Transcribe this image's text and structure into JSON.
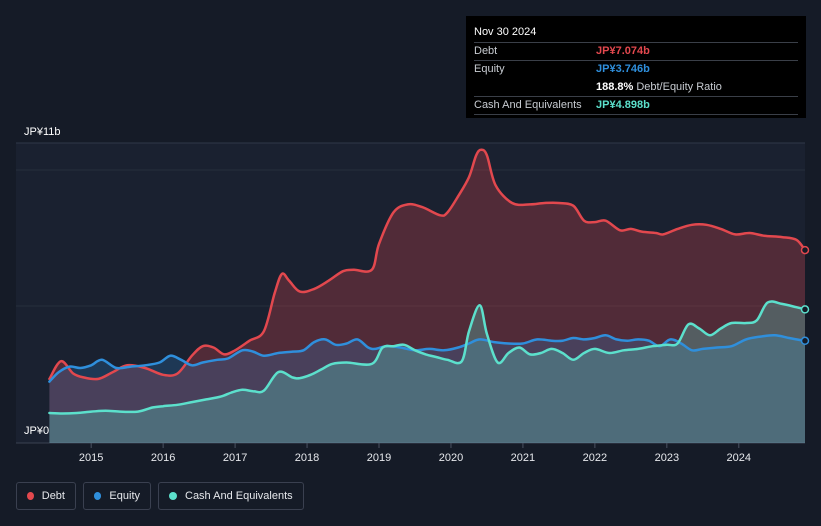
{
  "tooltip": {
    "date": "Nov 30 2024",
    "debt_label": "Debt",
    "debt_value": "JP¥7.074b",
    "equity_label": "Equity",
    "equity_value": "JP¥3.746b",
    "ratio_value": "188.8%",
    "ratio_label": "Debt/Equity Ratio",
    "cash_label": "Cash And Equivalents",
    "cash_value": "JP¥4.898b"
  },
  "legend": {
    "debt": "Debt",
    "equity": "Equity",
    "cash": "Cash And Equivalents"
  },
  "colors": {
    "debt": "#e2484e",
    "equity": "#2f8fdc",
    "cash": "#5ce0cc"
  },
  "chart_data": {
    "type": "area",
    "title": "",
    "xlabel": "",
    "ylabel": "",
    "y_max_label": "JP¥11b",
    "y_min_label": "JP¥0",
    "ylim": [
      0,
      11
    ],
    "xlim": [
      2014.4,
      2024.92
    ],
    "x_ticks": [
      {
        "value": 2015,
        "label": "2015"
      },
      {
        "value": 2016,
        "label": "2016"
      },
      {
        "value": 2017,
        "label": "2017"
      },
      {
        "value": 2018,
        "label": "2018"
      },
      {
        "value": 2019,
        "label": "2019"
      },
      {
        "value": 2020,
        "label": "2020"
      },
      {
        "value": 2021,
        "label": "2021"
      },
      {
        "value": 2022,
        "label": "2022"
      },
      {
        "value": 2023,
        "label": "2023"
      },
      {
        "value": 2024,
        "label": "2024"
      }
    ],
    "series": [
      {
        "name": "Debt",
        "color": "#e2484e",
        "points": [
          [
            2014.42,
            2.35
          ],
          [
            2014.58,
            3.0
          ],
          [
            2014.75,
            2.55
          ],
          [
            2014.9,
            2.4
          ],
          [
            2015.1,
            2.35
          ],
          [
            2015.3,
            2.6
          ],
          [
            2015.5,
            2.85
          ],
          [
            2015.75,
            2.75
          ],
          [
            2016.0,
            2.5
          ],
          [
            2016.2,
            2.55
          ],
          [
            2016.4,
            3.2
          ],
          [
            2016.55,
            3.55
          ],
          [
            2016.7,
            3.5
          ],
          [
            2016.85,
            3.25
          ],
          [
            2017.0,
            3.4
          ],
          [
            2017.2,
            3.75
          ],
          [
            2017.4,
            4.1
          ],
          [
            2017.55,
            5.5
          ],
          [
            2017.65,
            6.2
          ],
          [
            2017.75,
            5.95
          ],
          [
            2017.9,
            5.55
          ],
          [
            2018.1,
            5.65
          ],
          [
            2018.3,
            5.95
          ],
          [
            2018.5,
            6.3
          ],
          [
            2018.65,
            6.35
          ],
          [
            2018.9,
            6.35
          ],
          [
            2019.0,
            7.3
          ],
          [
            2019.2,
            8.45
          ],
          [
            2019.4,
            8.75
          ],
          [
            2019.6,
            8.65
          ],
          [
            2019.85,
            8.35
          ],
          [
            2019.95,
            8.45
          ],
          [
            2020.1,
            9.05
          ],
          [
            2020.25,
            9.75
          ],
          [
            2020.35,
            10.55
          ],
          [
            2020.42,
            10.75
          ],
          [
            2020.5,
            10.55
          ],
          [
            2020.62,
            9.45
          ],
          [
            2020.85,
            8.8
          ],
          [
            2021.1,
            8.75
          ],
          [
            2021.3,
            8.8
          ],
          [
            2021.5,
            8.8
          ],
          [
            2021.7,
            8.7
          ],
          [
            2021.85,
            8.15
          ],
          [
            2022.0,
            8.1
          ],
          [
            2022.15,
            8.15
          ],
          [
            2022.35,
            7.8
          ],
          [
            2022.5,
            7.85
          ],
          [
            2022.65,
            7.75
          ],
          [
            2022.85,
            7.7
          ],
          [
            2022.95,
            7.65
          ],
          [
            2023.15,
            7.85
          ],
          [
            2023.35,
            8.0
          ],
          [
            2023.55,
            8.0
          ],
          [
            2023.75,
            7.85
          ],
          [
            2023.95,
            7.65
          ],
          [
            2024.15,
            7.7
          ],
          [
            2024.35,
            7.6
          ],
          [
            2024.6,
            7.55
          ],
          [
            2024.8,
            7.45
          ],
          [
            2024.92,
            7.074
          ]
        ]
      },
      {
        "name": "Equity",
        "color": "#2f8fdc",
        "points": [
          [
            2014.42,
            2.25
          ],
          [
            2014.55,
            2.6
          ],
          [
            2014.7,
            2.8
          ],
          [
            2014.85,
            2.75
          ],
          [
            2015.0,
            2.85
          ],
          [
            2015.15,
            3.05
          ],
          [
            2015.35,
            2.75
          ],
          [
            2015.55,
            2.8
          ],
          [
            2015.75,
            2.85
          ],
          [
            2015.95,
            2.95
          ],
          [
            2016.1,
            3.2
          ],
          [
            2016.25,
            3.05
          ],
          [
            2016.4,
            2.85
          ],
          [
            2016.55,
            2.95
          ],
          [
            2016.75,
            3.05
          ],
          [
            2016.9,
            3.1
          ],
          [
            2017.1,
            3.4
          ],
          [
            2017.25,
            3.35
          ],
          [
            2017.4,
            3.2
          ],
          [
            2017.6,
            3.3
          ],
          [
            2017.8,
            3.35
          ],
          [
            2017.95,
            3.4
          ],
          [
            2018.1,
            3.7
          ],
          [
            2018.25,
            3.8
          ],
          [
            2018.4,
            3.6
          ],
          [
            2018.55,
            3.65
          ],
          [
            2018.7,
            3.8
          ],
          [
            2018.85,
            3.5
          ],
          [
            2018.95,
            3.45
          ],
          [
            2019.1,
            3.55
          ],
          [
            2019.3,
            3.5
          ],
          [
            2019.5,
            3.4
          ],
          [
            2019.7,
            3.45
          ],
          [
            2019.9,
            3.4
          ],
          [
            2020.1,
            3.5
          ],
          [
            2020.25,
            3.65
          ],
          [
            2020.4,
            3.8
          ],
          [
            2020.6,
            3.7
          ],
          [
            2020.8,
            3.65
          ],
          [
            2021.0,
            3.65
          ],
          [
            2021.2,
            3.8
          ],
          [
            2021.4,
            3.75
          ],
          [
            2021.55,
            3.75
          ],
          [
            2021.7,
            3.85
          ],
          [
            2021.85,
            3.8
          ],
          [
            2022.0,
            3.85
          ],
          [
            2022.15,
            3.95
          ],
          [
            2022.3,
            3.8
          ],
          [
            2022.45,
            3.75
          ],
          [
            2022.6,
            3.8
          ],
          [
            2022.75,
            3.75
          ],
          [
            2022.9,
            3.55
          ],
          [
            2023.05,
            3.8
          ],
          [
            2023.2,
            3.65
          ],
          [
            2023.35,
            3.4
          ],
          [
            2023.5,
            3.45
          ],
          [
            2023.7,
            3.5
          ],
          [
            2023.9,
            3.55
          ],
          [
            2024.1,
            3.8
          ],
          [
            2024.3,
            3.9
          ],
          [
            2024.5,
            3.95
          ],
          [
            2024.7,
            3.85
          ],
          [
            2024.92,
            3.746
          ]
        ]
      },
      {
        "name": "Cash And Equivalents",
        "color": "#5ce0cc",
        "points": [
          [
            2014.42,
            1.1
          ],
          [
            2014.6,
            1.08
          ],
          [
            2014.8,
            1.1
          ],
          [
            2015.0,
            1.15
          ],
          [
            2015.2,
            1.18
          ],
          [
            2015.4,
            1.15
          ],
          [
            2015.65,
            1.15
          ],
          [
            2015.85,
            1.3
          ],
          [
            2016.0,
            1.35
          ],
          [
            2016.2,
            1.4
          ],
          [
            2016.4,
            1.5
          ],
          [
            2016.6,
            1.6
          ],
          [
            2016.8,
            1.7
          ],
          [
            2016.95,
            1.85
          ],
          [
            2017.1,
            1.95
          ],
          [
            2017.25,
            1.9
          ],
          [
            2017.4,
            1.92
          ],
          [
            2017.6,
            2.6
          ],
          [
            2017.8,
            2.4
          ],
          [
            2017.9,
            2.38
          ],
          [
            2018.05,
            2.5
          ],
          [
            2018.2,
            2.7
          ],
          [
            2018.35,
            2.9
          ],
          [
            2018.55,
            2.95
          ],
          [
            2018.9,
            2.9
          ],
          [
            2019.05,
            3.5
          ],
          [
            2019.2,
            3.55
          ],
          [
            2019.35,
            3.6
          ],
          [
            2019.5,
            3.4
          ],
          [
            2019.65,
            3.25
          ],
          [
            2019.8,
            3.15
          ],
          [
            2019.95,
            3.05
          ],
          [
            2020.15,
            3.0
          ],
          [
            2020.25,
            4.1
          ],
          [
            2020.4,
            5.05
          ],
          [
            2020.5,
            4.0
          ],
          [
            2020.65,
            2.95
          ],
          [
            2020.8,
            3.3
          ],
          [
            2020.95,
            3.5
          ],
          [
            2021.1,
            3.25
          ],
          [
            2021.25,
            3.3
          ],
          [
            2021.4,
            3.45
          ],
          [
            2021.55,
            3.3
          ],
          [
            2021.7,
            3.05
          ],
          [
            2021.85,
            3.3
          ],
          [
            2022.0,
            3.45
          ],
          [
            2022.2,
            3.3
          ],
          [
            2022.4,
            3.4
          ],
          [
            2022.6,
            3.45
          ],
          [
            2022.8,
            3.55
          ],
          [
            2023.0,
            3.6
          ],
          [
            2023.15,
            3.65
          ],
          [
            2023.3,
            4.35
          ],
          [
            2023.45,
            4.2
          ],
          [
            2023.6,
            3.95
          ],
          [
            2023.75,
            4.2
          ],
          [
            2023.9,
            4.4
          ],
          [
            2024.1,
            4.4
          ],
          [
            2024.25,
            4.5
          ],
          [
            2024.4,
            5.15
          ],
          [
            2024.6,
            5.1
          ],
          [
            2024.8,
            4.98
          ],
          [
            2024.92,
            4.898
          ]
        ]
      }
    ]
  }
}
